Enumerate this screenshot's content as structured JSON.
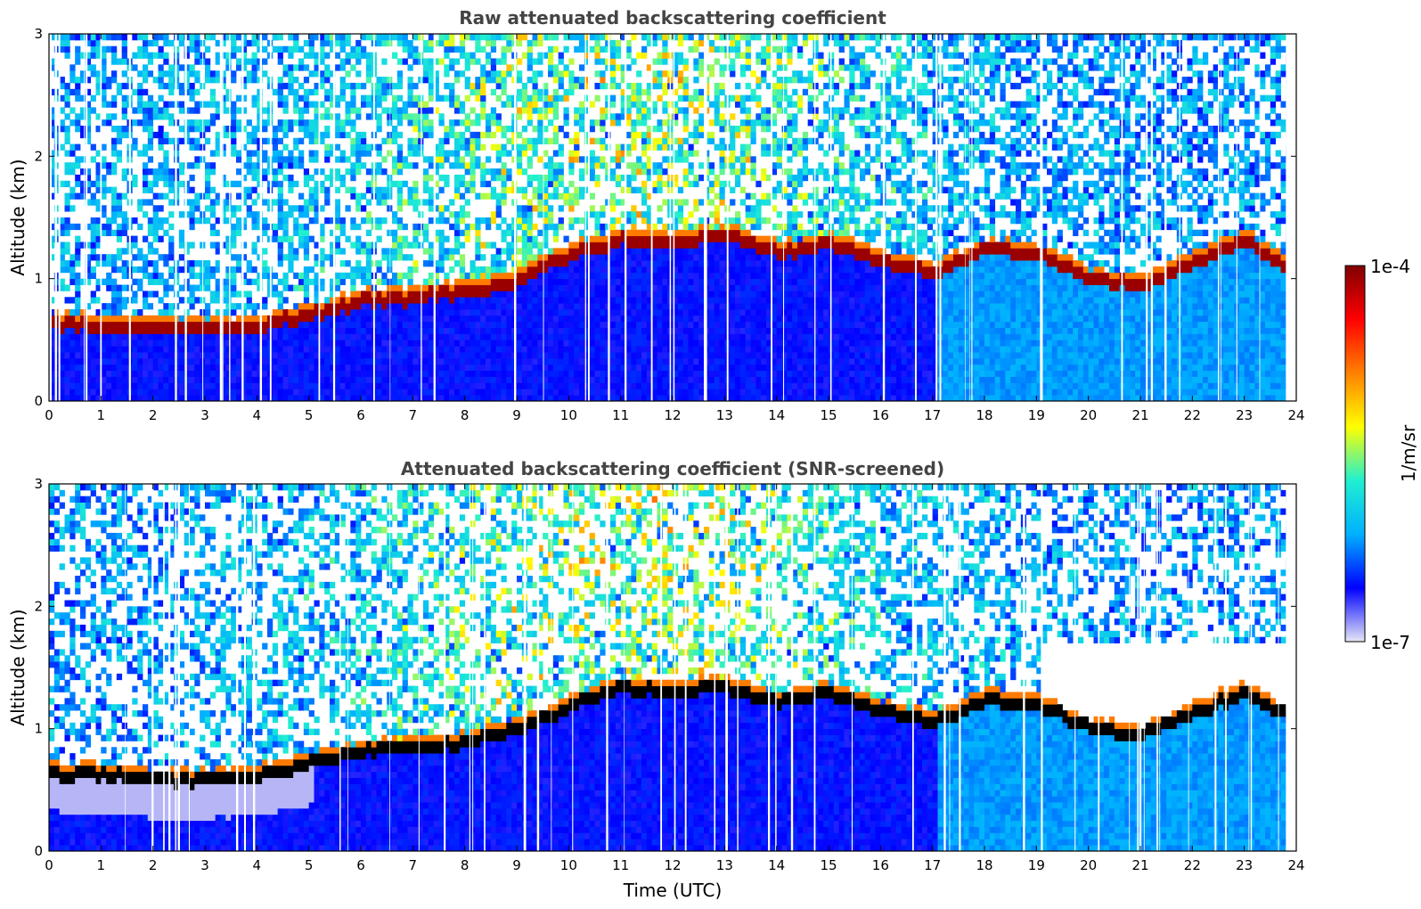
{
  "chart_data": [
    {
      "type": "heatmap",
      "title": "Raw attenuated backscattering coefficient",
      "xlabel": "",
      "ylabel": "Altitude (km)",
      "xlim": [
        0,
        24
      ],
      "ylim": [
        0,
        3
      ],
      "xticks": [
        "0",
        "1",
        "2",
        "3",
        "4",
        "5",
        "6",
        "7",
        "8",
        "9",
        "10",
        "11",
        "12",
        "13",
        "14",
        "15",
        "16",
        "17",
        "18",
        "19",
        "20",
        "21",
        "22",
        "23",
        "24"
      ],
      "yticks": [
        "0",
        "1",
        "2",
        "3"
      ],
      "layer_top_km": {
        "time_utc": [
          0,
          1,
          2,
          3,
          4,
          5,
          6,
          7,
          8,
          9,
          10,
          11,
          12,
          13,
          14,
          15,
          16,
          17,
          18,
          19,
          20,
          21,
          22,
          23,
          23.8
        ],
        "altitude_km": [
          0.65,
          0.62,
          0.6,
          0.58,
          0.62,
          0.72,
          0.82,
          0.85,
          0.9,
          1.0,
          1.2,
          1.33,
          1.3,
          1.35,
          1.22,
          1.3,
          1.15,
          1.05,
          1.25,
          1.2,
          1.0,
          0.95,
          1.15,
          1.3,
          1.1
        ]
      }
    },
    {
      "type": "heatmap",
      "title": "Attenuated backscattering coefficient (SNR-screened)",
      "xlabel": "Time (UTC)",
      "ylabel": "Altitude (km)",
      "xlim": [
        0,
        24
      ],
      "ylim": [
        0,
        3
      ],
      "xticks": [
        "0",
        "1",
        "2",
        "3",
        "4",
        "5",
        "6",
        "7",
        "8",
        "9",
        "10",
        "11",
        "12",
        "13",
        "14",
        "15",
        "16",
        "17",
        "18",
        "19",
        "20",
        "21",
        "22",
        "23",
        "24"
      ],
      "yticks": [
        "0",
        "1",
        "2",
        "3"
      ]
    }
  ],
  "colorbar": {
    "label": "1/m/sr",
    "max_label": "1e-4",
    "min_label": "1e-7",
    "range": [
      1e-07,
      0.0001
    ],
    "colormap": "jet",
    "colors": [
      "#e6e6f5",
      "#0000ff",
      "#00b0ff",
      "#20f0d0",
      "#ffff00",
      "#ff8000",
      "#ff0000",
      "#800000"
    ]
  }
}
